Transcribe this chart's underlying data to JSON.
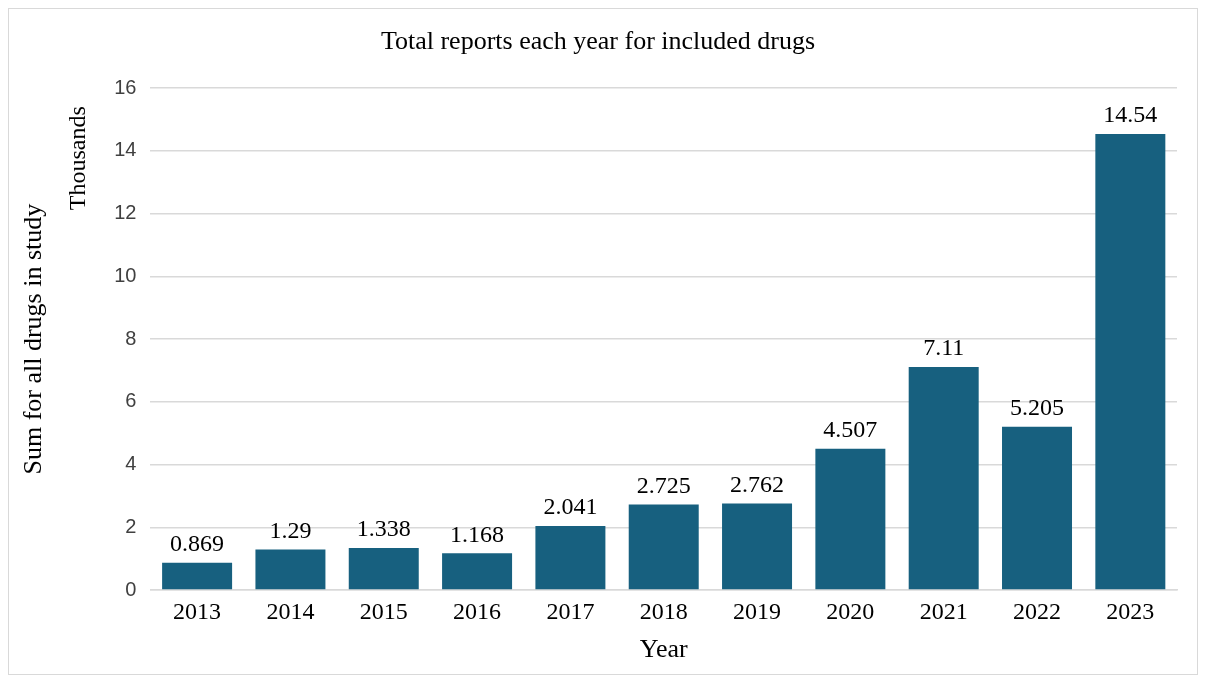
{
  "chart_data": {
    "type": "bar",
    "title": "Total reports each year for included drugs",
    "xlabel": "Year",
    "ylabel": "Sum for all drugs in study",
    "annotations": [
      "Thousands"
    ],
    "categories": [
      "2013",
      "2014",
      "2015",
      "2016",
      "2017",
      "2018",
      "2019",
      "2020",
      "2021",
      "2022",
      "2023"
    ],
    "values": [
      0.869,
      1.29,
      1.338,
      1.168,
      2.041,
      2.725,
      2.762,
      4.507,
      7.11,
      5.205,
      14.54
    ],
    "color": "#17607f",
    "ylim": [
      0,
      16
    ],
    "yticks": [
      0,
      2,
      4,
      6,
      8,
      10,
      12,
      14,
      16
    ],
    "grid": "y",
    "data_labels": true,
    "legend": false
  }
}
